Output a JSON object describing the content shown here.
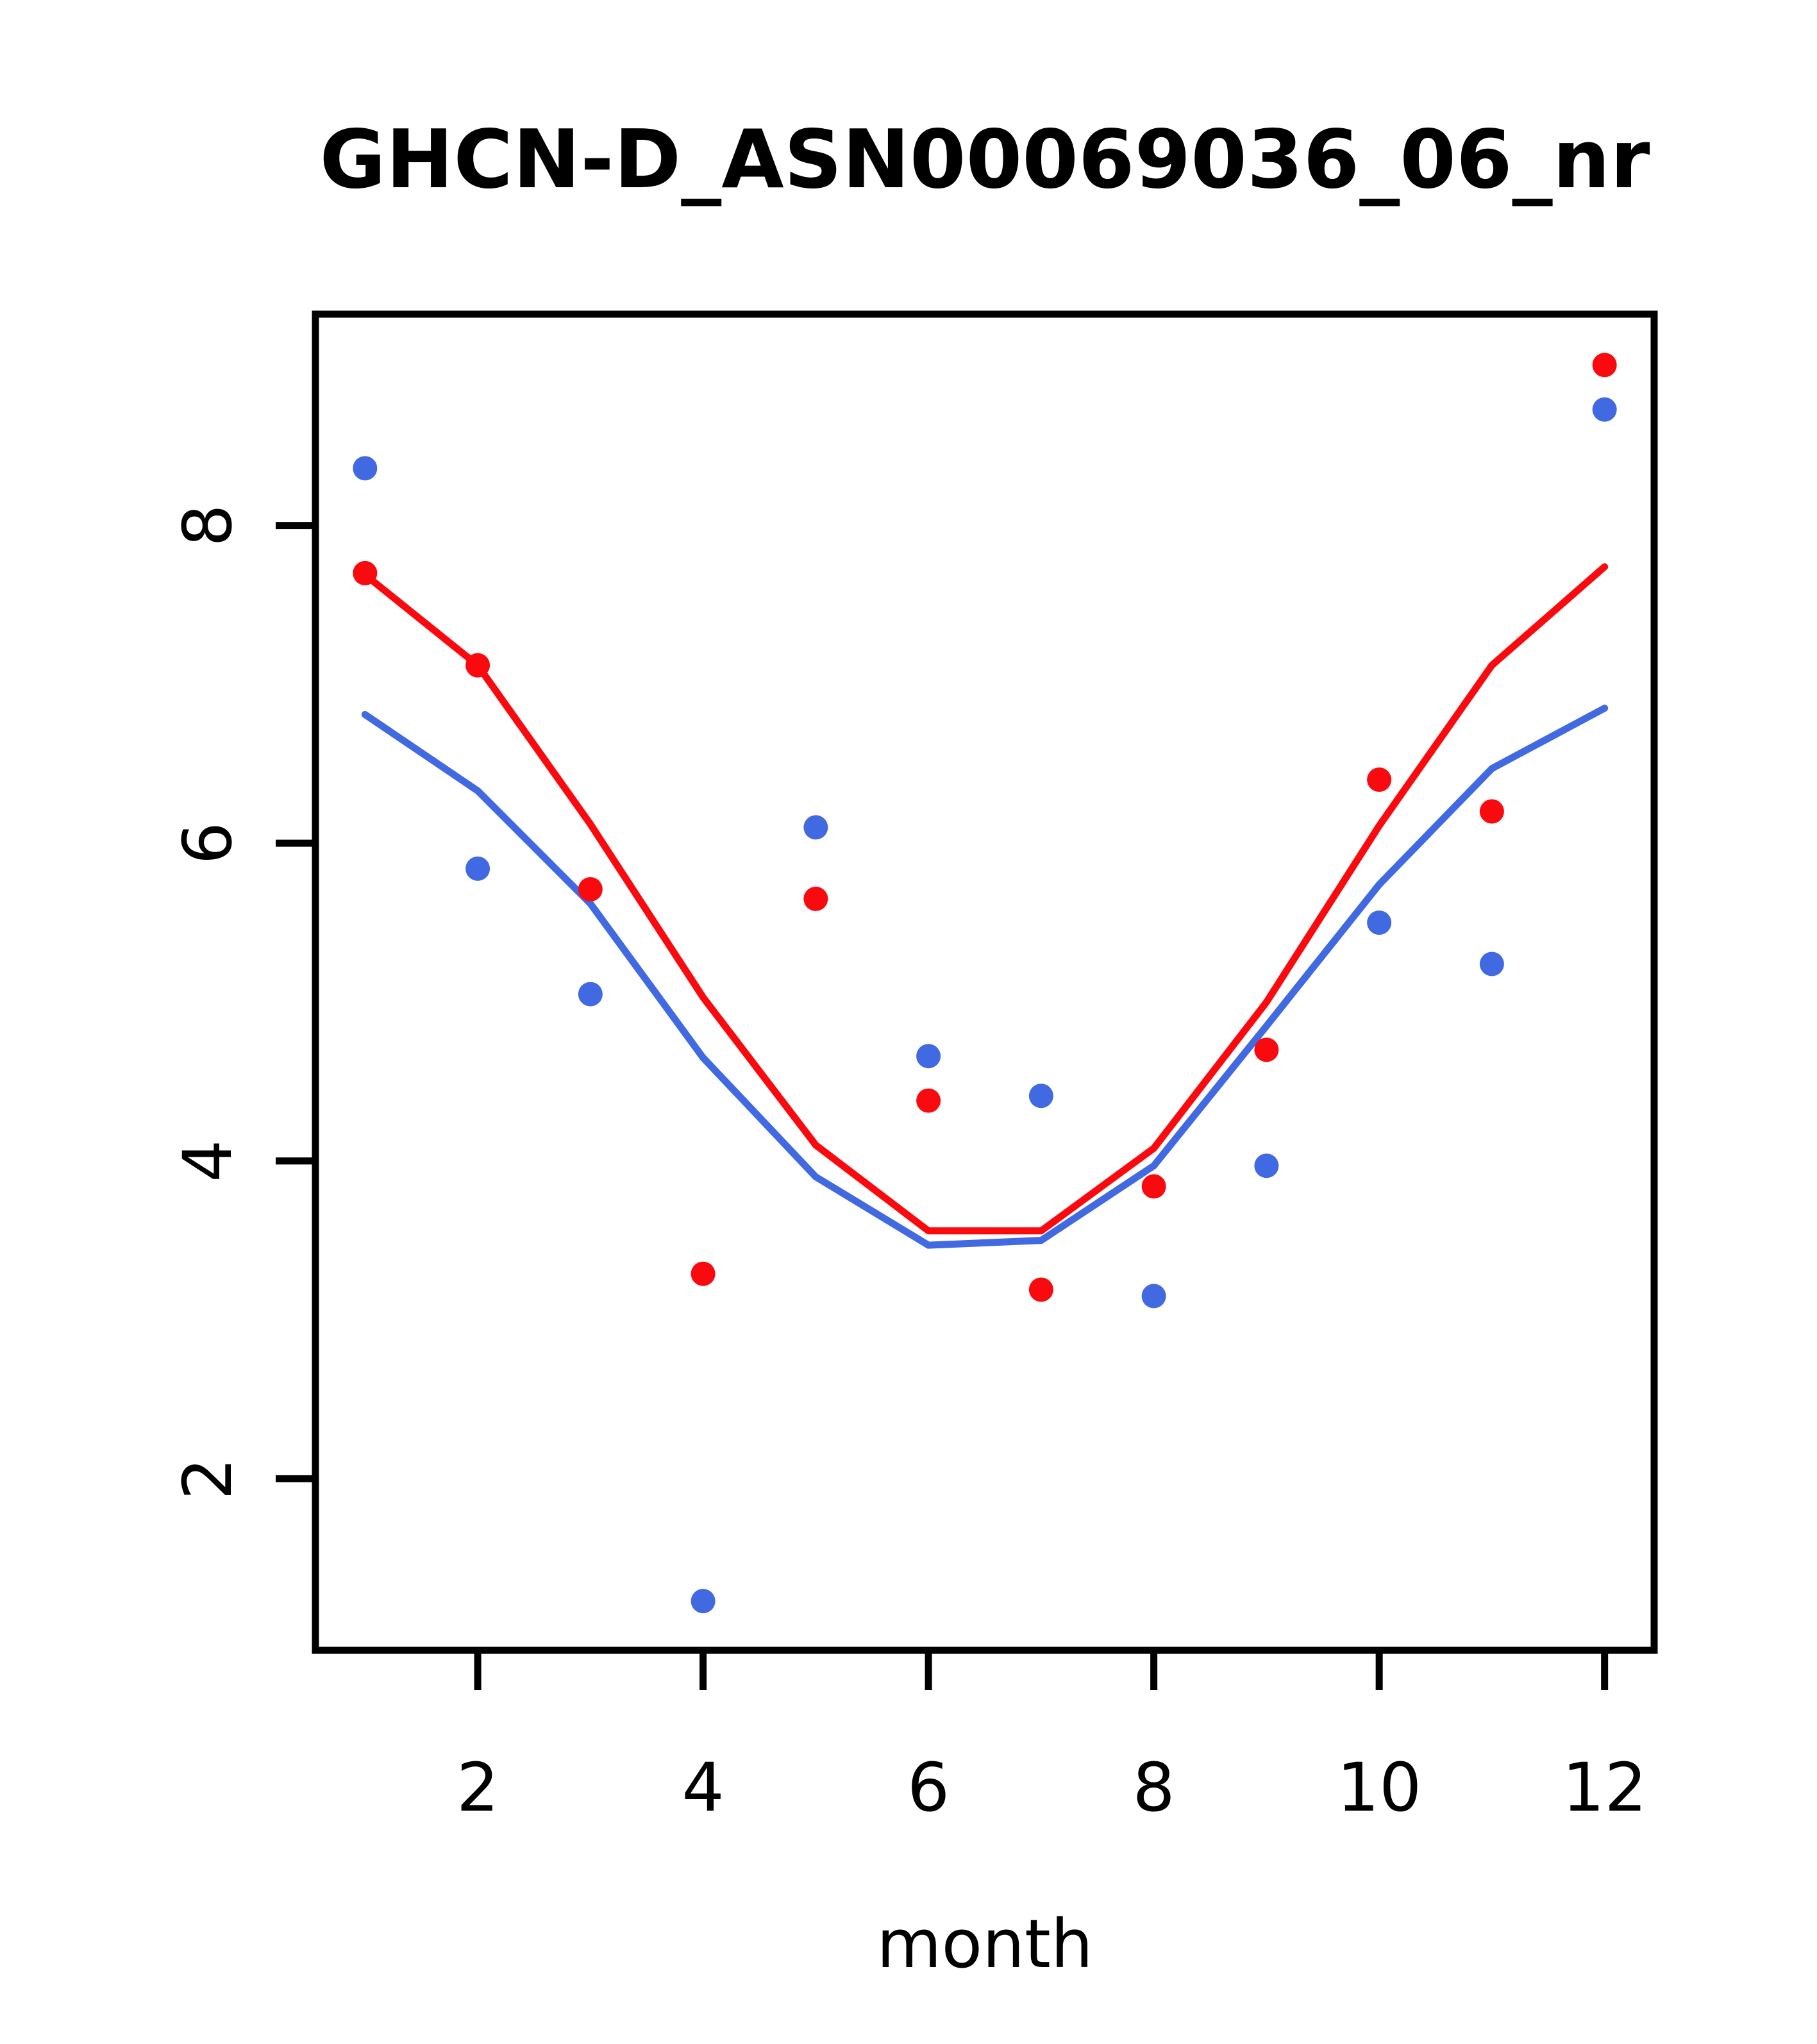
{
  "chart_data": {
    "type": "scatter",
    "title": "GHCN-D_ASN00069036_06_nr",
    "xlabel": "month",
    "ylabel": "",
    "grid": false,
    "legend": "none",
    "xlim": [
      0.56,
      12.44
    ],
    "ylim": [
      0.92,
      9.33
    ],
    "xticks": [
      2,
      4,
      6,
      8,
      10,
      12
    ],
    "yticks": [
      2,
      4,
      6,
      8
    ],
    "months": [
      1,
      2,
      3,
      4,
      5,
      6,
      7,
      8,
      9,
      10,
      11,
      12
    ],
    "colors": {
      "red": "#FA0A0F",
      "blue": "#4169E1",
      "axis": "#000000"
    },
    "series": [
      {
        "name": "red-points",
        "kind": "points",
        "color": "#FA0A0F",
        "values": [
          7.7,
          7.12,
          5.71,
          3.29,
          5.65,
          4.38,
          3.19,
          3.84,
          4.7,
          6.4,
          6.2,
          9.01
        ]
      },
      {
        "name": "blue-points",
        "kind": "points",
        "color": "#4169E1",
        "values": [
          8.36,
          5.84,
          5.05,
          1.23,
          6.1,
          4.66,
          4.41,
          3.15,
          3.97,
          5.5,
          5.24,
          8.73
        ]
      },
      {
        "name": "red-line",
        "kind": "line",
        "color": "#FA0A0F",
        "values": [
          7.69,
          7.12,
          6.12,
          5.03,
          4.1,
          3.56,
          3.56,
          4.08,
          5.0,
          6.11,
          7.12,
          7.74
        ]
      },
      {
        "name": "blue-line",
        "kind": "line",
        "color": "#4169E1",
        "values": [
          6.81,
          6.33,
          5.62,
          4.65,
          3.9,
          3.47,
          3.5,
          3.97,
          4.85,
          5.74,
          6.47,
          6.85
        ]
      }
    ]
  }
}
